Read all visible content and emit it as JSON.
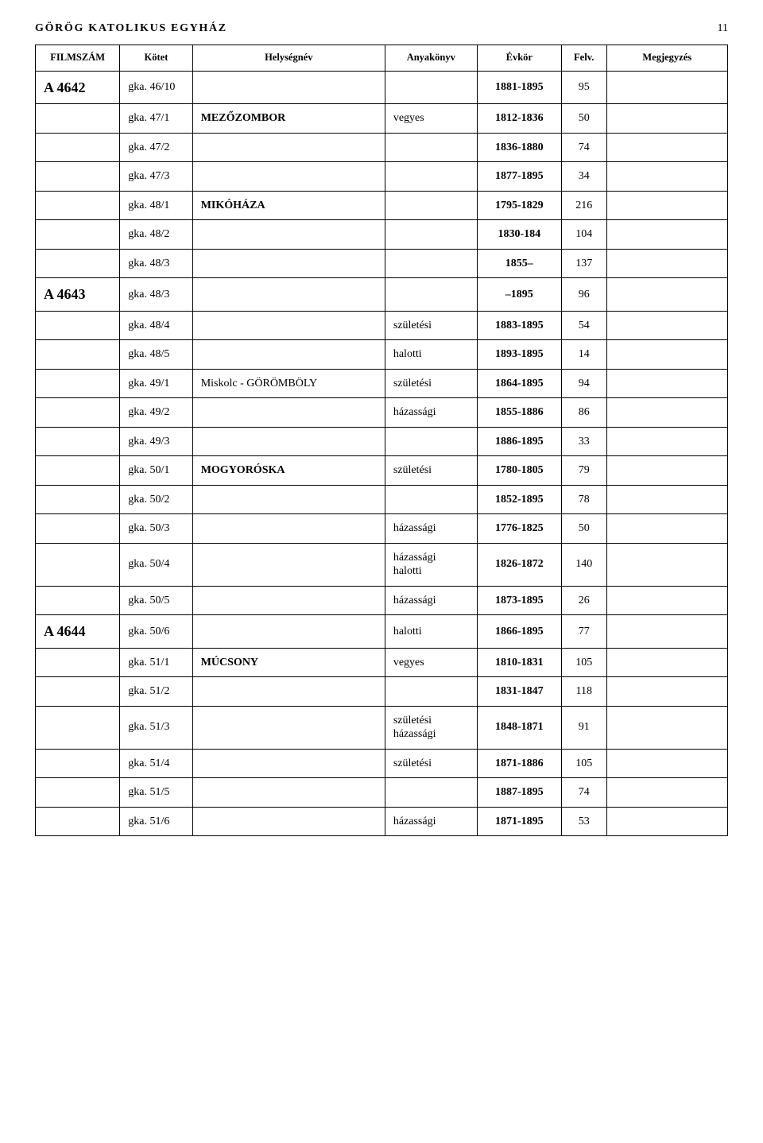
{
  "page": {
    "running_title": "GÖRÖG KATOLIKUS EGYHÁZ",
    "page_number": "11"
  },
  "columns": {
    "filmszam": "FILMSZÁM",
    "kotet": "Kötet",
    "helysegnev": "Helységnév",
    "anyakonyv": "Anyakönyv",
    "evkor": "Évkör",
    "felv": "Felv.",
    "megjegyzes": "Megjegyzés"
  },
  "rows": [
    {
      "filmszam": "A 4642",
      "kotet": "gka. 46/10",
      "hely": "",
      "hely_bold": false,
      "anya": "",
      "evkor": "1881-1895",
      "felv": "95",
      "megj": ""
    },
    {
      "filmszam": "",
      "kotet": "gka. 47/1",
      "hely": "MEZŐZOMBOR",
      "hely_bold": true,
      "anya": "vegyes",
      "evkor": "1812-1836",
      "felv": "50",
      "megj": ""
    },
    {
      "filmszam": "",
      "kotet": "gka. 47/2",
      "hely": "",
      "hely_bold": false,
      "anya": "",
      "evkor": "1836-1880",
      "felv": "74",
      "megj": ""
    },
    {
      "filmszam": "",
      "kotet": "gka. 47/3",
      "hely": "",
      "hely_bold": false,
      "anya": "",
      "evkor": "1877-1895",
      "felv": "34",
      "megj": ""
    },
    {
      "filmszam": "",
      "kotet": "gka. 48/1",
      "hely": "MIKÓHÁZA",
      "hely_bold": true,
      "anya": "",
      "evkor": "1795-1829",
      "felv": "216",
      "megj": ""
    },
    {
      "filmszam": "",
      "kotet": "gka. 48/2",
      "hely": "",
      "hely_bold": false,
      "anya": "",
      "evkor": "1830-184",
      "felv": "104",
      "megj": ""
    },
    {
      "filmszam": "",
      "kotet": "gka. 48/3",
      "hely": "",
      "hely_bold": false,
      "anya": "",
      "evkor": "1855–",
      "felv": "137",
      "megj": ""
    },
    {
      "filmszam": "A 4643",
      "kotet": "gka. 48/3",
      "hely": "",
      "hely_bold": false,
      "anya": "",
      "evkor": "–1895",
      "felv": "96",
      "megj": ""
    },
    {
      "filmszam": "",
      "kotet": "gka. 48/4",
      "hely": "",
      "hely_bold": false,
      "anya": "születési",
      "evkor": "1883-1895",
      "felv": "54",
      "megj": ""
    },
    {
      "filmszam": "",
      "kotet": "gka. 48/5",
      "hely": "",
      "hely_bold": false,
      "anya": "halotti",
      "evkor": "1893-1895",
      "felv": "14",
      "megj": ""
    },
    {
      "filmszam": "",
      "kotet": "gka. 49/1",
      "hely": "Miskolc - GÖRÖMBÖLY",
      "hely_bold": false,
      "anya": "születési",
      "evkor": "1864-1895",
      "felv": "94",
      "megj": ""
    },
    {
      "filmszam": "",
      "kotet": "gka. 49/2",
      "hely": "",
      "hely_bold": false,
      "anya": "házassági",
      "evkor": "1855-1886",
      "felv": "86",
      "megj": ""
    },
    {
      "filmszam": "",
      "kotet": "gka. 49/3",
      "hely": "",
      "hely_bold": false,
      "anya": "",
      "evkor": "1886-1895",
      "felv": "33",
      "megj": ""
    },
    {
      "filmszam": "",
      "kotet": "gka. 50/1",
      "hely": "MOGYORÓSKA",
      "hely_bold": true,
      "anya": "születési",
      "evkor": "1780-1805",
      "felv": "79",
      "megj": ""
    },
    {
      "filmszam": "",
      "kotet": "gka. 50/2",
      "hely": "",
      "hely_bold": false,
      "anya": "",
      "evkor": "1852-1895",
      "felv": "78",
      "megj": ""
    },
    {
      "filmszam": "",
      "kotet": "gka. 50/3",
      "hely": "",
      "hely_bold": false,
      "anya": "házassági",
      "evkor": "1776-1825",
      "felv": "50",
      "megj": ""
    },
    {
      "filmszam": "",
      "kotet": "gka. 50/4",
      "hely": "",
      "hely_bold": false,
      "anya": "házassági\nhalotti",
      "evkor": "1826-1872",
      "felv": "140",
      "megj": ""
    },
    {
      "filmszam": "",
      "kotet": "gka. 50/5",
      "hely": "",
      "hely_bold": false,
      "anya": "házassági",
      "evkor": "1873-1895",
      "felv": "26",
      "megj": ""
    },
    {
      "filmszam": "A 4644",
      "kotet": "gka. 50/6",
      "hely": "",
      "hely_bold": false,
      "anya": "halotti",
      "evkor": "1866-1895",
      "felv": "77",
      "megj": ""
    },
    {
      "filmszam": "",
      "kotet": "gka. 51/1",
      "hely": "MÚCSONY",
      "hely_bold": true,
      "anya": "vegyes",
      "evkor": "1810-1831",
      "felv": "105",
      "megj": ""
    },
    {
      "filmszam": "",
      "kotet": "gka. 51/2",
      "hely": "",
      "hely_bold": false,
      "anya": "",
      "evkor": "1831-1847",
      "felv": "118",
      "megj": ""
    },
    {
      "filmszam": "",
      "kotet": "gka. 51/3",
      "hely": "",
      "hely_bold": false,
      "anya": "születési\nházassági",
      "evkor": "1848-1871",
      "felv": "91",
      "megj": ""
    },
    {
      "filmszam": "",
      "kotet": "gka. 51/4",
      "hely": "",
      "hely_bold": false,
      "anya": "születési",
      "evkor": "1871-1886",
      "felv": "105",
      "megj": ""
    },
    {
      "filmszam": "",
      "kotet": "gka. 51/5",
      "hely": "",
      "hely_bold": false,
      "anya": "",
      "evkor": "1887-1895",
      "felv": "74",
      "megj": ""
    },
    {
      "filmszam": "",
      "kotet": "gka. 51/6",
      "hely": "",
      "hely_bold": false,
      "anya": "házassági",
      "evkor": "1871-1895",
      "felv": "53",
      "megj": ""
    }
  ]
}
